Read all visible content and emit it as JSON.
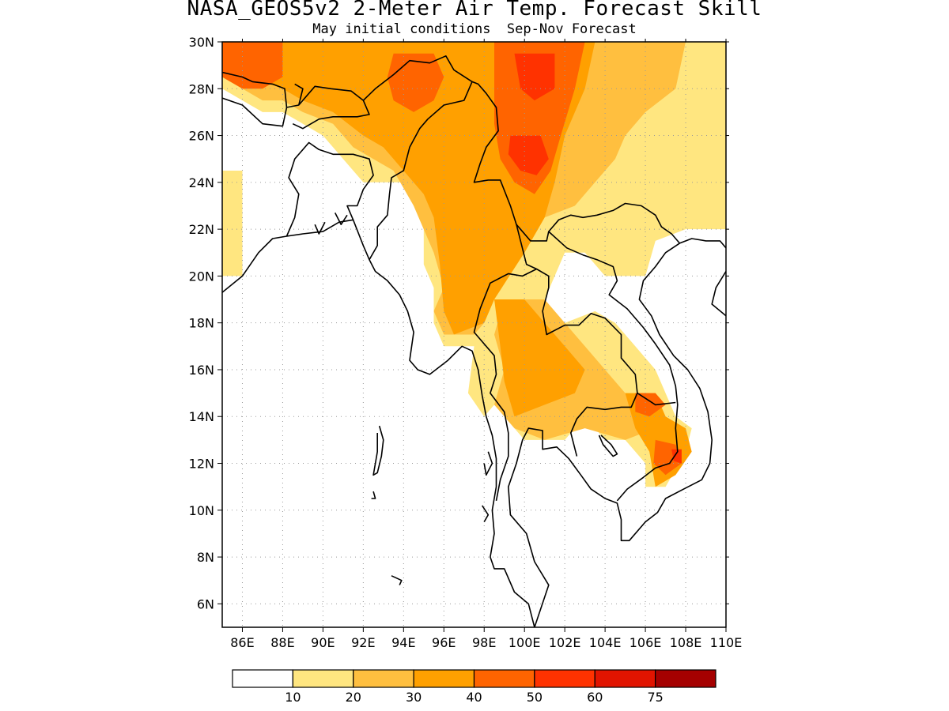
{
  "title": "NASA_GEOS5v2 2-Meter Air Temp. Forecast Skill",
  "subtitle": "May initial conditions  Sep-Nov Forecast",
  "map": {
    "lon_range": [
      85,
      110
    ],
    "lat_range": [
      5,
      30
    ],
    "lon_ticks": [
      "86E",
      "88E",
      "90E",
      "92E",
      "94E",
      "96E",
      "98E",
      "100E",
      "102E",
      "104E",
      "106E",
      "108E",
      "110E"
    ],
    "lat_ticks": [
      "6N",
      "8N",
      "10N",
      "12N",
      "14N",
      "16N",
      "18N",
      "20N",
      "22N",
      "24N",
      "26N",
      "28N",
      "30N"
    ],
    "grid": "dotted"
  },
  "colorbar": {
    "colors": [
      "#ffffff",
      "#ffe680",
      "#ffbf3f",
      "#ffa000",
      "#ff6400",
      "#ff3200",
      "#e11400",
      "#a50000"
    ],
    "labels": [
      "10",
      "20",
      "30",
      "40",
      "50",
      "60",
      "75"
    ]
  },
  "chart_data": {
    "type": "heatmap",
    "xlabel": "",
    "ylabel": "",
    "x_range_deg_e": [
      85,
      110
    ],
    "y_range_deg_n": [
      5,
      30
    ],
    "levels": [
      10,
      20,
      30,
      40,
      50,
      60,
      75
    ],
    "regions": [
      {
        "level": 10,
        "polygon_lonlat": [
          [
            85,
            24.5
          ],
          [
            86,
            24.5
          ],
          [
            86,
            20
          ],
          [
            85,
            20
          ]
        ]
      },
      {
        "level": 10,
        "polygon_lonlat": [
          [
            85,
            30
          ],
          [
            110,
            30
          ],
          [
            110,
            22
          ],
          [
            108,
            22
          ],
          [
            106.5,
            21.5
          ],
          [
            106,
            20
          ],
          [
            104,
            20
          ],
          [
            103.5,
            20.5
          ],
          [
            103,
            21
          ],
          [
            102,
            21
          ],
          [
            101,
            19
          ],
          [
            100,
            17
          ],
          [
            99,
            17
          ],
          [
            99,
            14
          ],
          [
            100,
            13
          ],
          [
            102,
            13
          ],
          [
            103,
            14
          ],
          [
            104,
            13
          ],
          [
            105,
            13
          ],
          [
            106,
            12
          ],
          [
            106,
            11
          ],
          [
            107,
            11
          ],
          [
            108,
            12.5
          ],
          [
            108.3,
            13.5
          ],
          [
            107.5,
            14
          ],
          [
            107,
            15
          ],
          [
            106.5,
            16
          ],
          [
            105.5,
            17
          ],
          [
            104.5,
            18
          ],
          [
            103.5,
            18.5
          ],
          [
            102,
            18
          ],
          [
            100.5,
            17
          ],
          [
            100,
            17.5
          ],
          [
            99.5,
            16
          ],
          [
            99,
            15
          ],
          [
            98,
            14
          ],
          [
            97.2,
            15
          ],
          [
            97.5,
            17
          ],
          [
            96,
            17
          ],
          [
            95.5,
            18
          ],
          [
            95.5,
            19.5
          ],
          [
            95,
            20.5
          ],
          [
            95,
            22
          ],
          [
            94.5,
            23
          ],
          [
            94,
            24
          ],
          [
            92,
            24
          ],
          [
            91,
            25
          ],
          [
            90,
            26
          ],
          [
            89,
            26.5
          ],
          [
            88,
            27
          ],
          [
            87,
            27
          ],
          [
            86,
            27.5
          ],
          [
            85,
            28
          ]
        ]
      },
      {
        "level": 20,
        "polygon_lonlat": [
          [
            85,
            30
          ],
          [
            108,
            30
          ],
          [
            107.5,
            28
          ],
          [
            106,
            27
          ],
          [
            105,
            26
          ],
          [
            104.5,
            25
          ],
          [
            103.5,
            24
          ],
          [
            102.5,
            23
          ],
          [
            101,
            22.5
          ],
          [
            100,
            21
          ],
          [
            99,
            20
          ],
          [
            98,
            18
          ],
          [
            97.5,
            17.5
          ],
          [
            96,
            17.5
          ],
          [
            95.5,
            18.5
          ],
          [
            96,
            19.5
          ],
          [
            95.5,
            21
          ],
          [
            95,
            22
          ],
          [
            94.5,
            23
          ],
          [
            93.5,
            24.5
          ],
          [
            92.5,
            25
          ],
          [
            91.5,
            25.5
          ],
          [
            90.5,
            26.5
          ],
          [
            89,
            27
          ],
          [
            88,
            27.5
          ],
          [
            87,
            27.5
          ],
          [
            86,
            28
          ],
          [
            85,
            28.5
          ]
        ]
      },
      {
        "level": 20,
        "polygon_lonlat": [
          [
            99,
            19
          ],
          [
            101,
            19
          ],
          [
            102,
            18
          ],
          [
            103,
            17
          ],
          [
            104,
            16
          ],
          [
            105,
            15
          ],
          [
            106,
            14.5
          ],
          [
            106.5,
            13.5
          ],
          [
            105,
            13
          ],
          [
            103,
            13.5
          ],
          [
            101,
            13
          ],
          [
            99.5,
            13.5
          ],
          [
            98.5,
            14.5
          ],
          [
            99,
            16
          ],
          [
            98.5,
            17.5
          ]
        ]
      },
      {
        "level": 30,
        "polygon_lonlat": [
          [
            85.5,
            30
          ],
          [
            103.5,
            30
          ],
          [
            103,
            28
          ],
          [
            102,
            26
          ],
          [
            101.5,
            24
          ],
          [
            101,
            22.5
          ],
          [
            100,
            21
          ],
          [
            98.5,
            19
          ],
          [
            98,
            18
          ],
          [
            96.5,
            17.5
          ],
          [
            96,
            18.5
          ],
          [
            95.8,
            20.5
          ],
          [
            95.5,
            22.5
          ],
          [
            95,
            23.5
          ],
          [
            94,
            24.5
          ],
          [
            93,
            25.5
          ],
          [
            92,
            26
          ],
          [
            90.5,
            27
          ],
          [
            89,
            27.5
          ],
          [
            88,
            28
          ],
          [
            87,
            28.3
          ],
          [
            86,
            28.5
          ],
          [
            85.5,
            29
          ]
        ]
      },
      {
        "level": 30,
        "polygon_lonlat": [
          [
            98.5,
            19
          ],
          [
            100,
            19
          ],
          [
            101,
            18
          ],
          [
            102,
            17
          ],
          [
            103,
            16
          ],
          [
            102.5,
            15
          ],
          [
            101,
            14.5
          ],
          [
            99.5,
            14
          ],
          [
            99,
            15.5
          ],
          [
            98.8,
            17
          ]
        ]
      },
      {
        "level": 30,
        "polygon_lonlat": [
          [
            105,
            15
          ],
          [
            106.5,
            15
          ],
          [
            107,
            14
          ],
          [
            108,
            13.5
          ],
          [
            108.3,
            12.5
          ],
          [
            107.5,
            11.5
          ],
          [
            106.5,
            11
          ],
          [
            106.2,
            12.5
          ],
          [
            105.5,
            13.5
          ]
        ]
      },
      {
        "level": 40,
        "polygon_lonlat": [
          [
            85,
            30
          ],
          [
            88,
            30
          ],
          [
            88,
            28.5
          ],
          [
            87,
            28
          ],
          [
            86,
            28
          ],
          [
            85,
            28.5
          ]
        ]
      },
      {
        "level": 40,
        "polygon_lonlat": [
          [
            98.5,
            30
          ],
          [
            103,
            30
          ],
          [
            102.5,
            28
          ],
          [
            101.8,
            26
          ],
          [
            101.3,
            24.5
          ],
          [
            100.5,
            23.5
          ],
          [
            99.5,
            24
          ],
          [
            98.8,
            25
          ],
          [
            98.5,
            26.5
          ],
          [
            98.5,
            28.5
          ]
        ]
      },
      {
        "level": 40,
        "polygon_lonlat": [
          [
            93.5,
            29.5
          ],
          [
            95.5,
            29.5
          ],
          [
            96,
            28.5
          ],
          [
            95.5,
            27.5
          ],
          [
            94.5,
            27
          ],
          [
            93.5,
            27.5
          ],
          [
            93.2,
            28.5
          ]
        ]
      },
      {
        "level": 40,
        "polygon_lonlat": [
          [
            105.5,
            15
          ],
          [
            106.5,
            15
          ],
          [
            107,
            14.5
          ],
          [
            106.2,
            14
          ],
          [
            105.5,
            14.2
          ]
        ]
      },
      {
        "level": 40,
        "polygon_lonlat": [
          [
            106.5,
            13
          ],
          [
            107.5,
            12.8
          ],
          [
            107.8,
            12
          ],
          [
            107,
            11.5
          ],
          [
            106.4,
            12
          ]
        ]
      },
      {
        "level": 50,
        "polygon_lonlat": [
          [
            99.5,
            29.5
          ],
          [
            101.5,
            29.5
          ],
          [
            101.5,
            28
          ],
          [
            100.5,
            27.5
          ],
          [
            99.8,
            28
          ]
        ]
      },
      {
        "level": 50,
        "polygon_lonlat": [
          [
            99.3,
            26
          ],
          [
            100.8,
            26
          ],
          [
            101.2,
            25
          ],
          [
            100.6,
            24.3
          ],
          [
            99.8,
            24.5
          ],
          [
            99.2,
            25.2
          ]
        ]
      },
      {
        "level": 50,
        "polygon_lonlat": [
          [
            107.3,
            12.6
          ],
          [
            107.8,
            12.6
          ],
          [
            107.8,
            12
          ],
          [
            107.4,
            12.1
          ]
        ]
      }
    ]
  }
}
